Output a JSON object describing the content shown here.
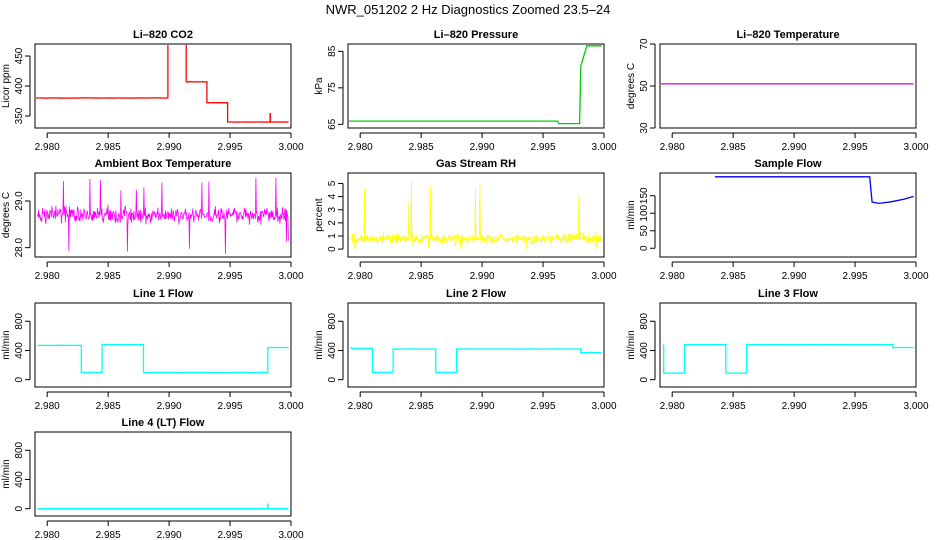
{
  "figure_title": "NWR_051202  2 Hz Diagnostics Zoomed 23.5–24",
  "chart_data": [
    {
      "type": "line",
      "title": "Li–820 CO2",
      "xlabel": "",
      "ylabel": "Licor ppm",
      "xlim": [
        2.979,
        3.0
      ],
      "ylim": [
        330,
        470
      ],
      "xticks": [
        2.98,
        2.985,
        2.99,
        2.995,
        3.0
      ],
      "xticklabels": [
        "2.980",
        "2.985",
        "2.990",
        "2.995",
        "3.000"
      ],
      "yticks": [
        350,
        400,
        450
      ],
      "yticklabels": [
        "350",
        "400",
        "450"
      ],
      "color": "#ff0000",
      "series": [
        {
          "kind": "step",
          "noise": 0.6,
          "x": [
            2.979,
            2.9899,
            2.9914,
            2.9931,
            2.9948,
            2.9998
          ],
          "y": [
            380,
            475,
            407,
            372,
            340,
            340
          ]
        }
      ],
      "spikes": [
        {
          "x": 2.9983,
          "y": 355
        }
      ]
    },
    {
      "type": "line",
      "title": "Li–820 Pressure",
      "xlabel": "",
      "ylabel": "kPa",
      "xlim": [
        2.979,
        3.0
      ],
      "ylim": [
        64,
        87
      ],
      "xticks": [
        2.98,
        2.985,
        2.99,
        2.995,
        3.0
      ],
      "xticklabels": [
        "2.980",
        "2.985",
        "2.990",
        "2.995",
        "3.000"
      ],
      "yticks": [
        65,
        75,
        85
      ],
      "yticklabels": [
        "65",
        "75",
        "85"
      ],
      "color": "#00cc00",
      "series": [
        {
          "kind": "path",
          "x": [
            2.979,
            2.9962,
            2.9963,
            2.998,
            2.9981,
            2.9986,
            2.9998
          ],
          "y": [
            65.9,
            65.9,
            65.2,
            65.2,
            81,
            86.5,
            86.5
          ]
        }
      ]
    },
    {
      "type": "line",
      "title": "Li–820 Temperature",
      "xlabel": "",
      "ylabel": "degrees C",
      "xlim": [
        2.979,
        3.0
      ],
      "ylim": [
        30,
        70
      ],
      "xticks": [
        2.98,
        2.985,
        2.99,
        2.995,
        3.0
      ],
      "xticklabels": [
        "2.980",
        "2.985",
        "2.990",
        "2.995",
        "3.000"
      ],
      "yticks": [
        30,
        50,
        70
      ],
      "yticklabels": [
        "30",
        "50",
        "70"
      ],
      "color": "#cc00cc",
      "series": [
        {
          "kind": "path",
          "x": [
            2.979,
            2.9998
          ],
          "y": [
            51,
            51
          ]
        }
      ]
    },
    {
      "type": "line",
      "title": "Ambient Box Temperature",
      "xlabel": "",
      "ylabel": "degrees C",
      "xlim": [
        2.979,
        3.0
      ],
      "ylim": [
        27.8,
        29.6
      ],
      "xticks": [
        2.98,
        2.985,
        2.99,
        2.995,
        3.0
      ],
      "xticklabels": [
        "2.980",
        "2.985",
        "2.990",
        "2.995",
        "3.000"
      ],
      "yticks": [
        28.0,
        29.0
      ],
      "yticklabels": [
        "28.0",
        "29.0"
      ],
      "color": "#ff00ff",
      "series": [
        {
          "kind": "noise",
          "x0": 2.9792,
          "x1": 2.9998,
          "base": 28.7,
          "spread": 0.18,
          "peakHi": 29.55,
          "peakLo": 27.85
        }
      ]
    },
    {
      "type": "line",
      "title": "Gas Stream RH",
      "xlabel": "",
      "ylabel": "percent",
      "xlim": [
        2.979,
        3.0
      ],
      "ylim": [
        -0.6,
        5.8
      ],
      "xticks": [
        2.98,
        2.985,
        2.99,
        2.995,
        3.0
      ],
      "xticklabels": [
        "2.980",
        "2.985",
        "2.990",
        "2.995",
        "3.000"
      ],
      "yticks": [
        0,
        1,
        2,
        3,
        4,
        5
      ],
      "yticklabels": [
        "0",
        "1",
        "2",
        "3",
        "4",
        "5"
      ],
      "color": "#ffff00",
      "series": [
        {
          "kind": "noise",
          "x0": 2.9792,
          "x1": 2.9998,
          "base": 0.8,
          "spread": 0.45,
          "peakHi": 5.3,
          "peakLo": -0.1
        }
      ]
    },
    {
      "type": "line",
      "title": "Sample Flow",
      "xlabel": "",
      "ylabel": "ml/min",
      "xlim": [
        2.979,
        3.0
      ],
      "ylim": [
        -25,
        215
      ],
      "xticks": [
        2.98,
        2.985,
        2.99,
        2.995,
        3.0
      ],
      "xticklabels": [
        "2.980",
        "2.985",
        "2.990",
        "2.995",
        "3.000"
      ],
      "yticks": [
        0,
        50,
        100,
        150
      ],
      "yticklabels": [
        "0",
        "50",
        "100",
        "150"
      ],
      "color": "#0000ff",
      "series": [
        {
          "kind": "path",
          "x": [
            2.9835,
            2.9962,
            2.9964,
            2.997,
            2.998,
            2.999,
            2.9998
          ],
          "y": [
            204,
            204,
            132,
            128,
            133,
            140,
            148
          ]
        }
      ]
    },
    {
      "type": "line",
      "title": "Line 1 Flow",
      "xlabel": "",
      "ylabel": "ml/min",
      "xlim": [
        2.979,
        3.0
      ],
      "ylim": [
        -100,
        1050
      ],
      "xticks": [
        2.98,
        2.985,
        2.99,
        2.995,
        3.0
      ],
      "xticklabels": [
        "2.980",
        "2.985",
        "2.990",
        "2.995",
        "3.000"
      ],
      "yticks": [
        0,
        400,
        800
      ],
      "yticklabels": [
        "0",
        "400",
        "800"
      ],
      "color": "#00ffff",
      "series": [
        {
          "kind": "step",
          "noise": 4,
          "x": [
            2.9792,
            2.9828,
            2.9845,
            2.9879,
            2.9981,
            2.9998
          ],
          "y": [
            470,
            100,
            480,
            100,
            440,
            440
          ]
        }
      ]
    },
    {
      "type": "line",
      "title": "Line 2 Flow",
      "xlabel": "",
      "ylabel": "ml/min",
      "xlim": [
        2.979,
        3.0
      ],
      "ylim": [
        -100,
        1050
      ],
      "xticks": [
        2.98,
        2.985,
        2.99,
        2.995,
        3.0
      ],
      "xticklabels": [
        "2.980",
        "2.985",
        "2.990",
        "2.995",
        "3.000"
      ],
      "yticks": [
        0,
        400,
        800
      ],
      "yticklabels": [
        "0",
        "400",
        "800"
      ],
      "color": "#00ffff",
      "series": [
        {
          "kind": "step",
          "noise": 4,
          "x": [
            2.9792,
            2.981,
            2.9827,
            2.9862,
            2.9879,
            2.9981,
            2.9998
          ],
          "y": [
            430,
            100,
            420,
            100,
            420,
            370,
            370
          ]
        }
      ]
    },
    {
      "type": "line",
      "title": "Line 3 Flow",
      "xlabel": "",
      "ylabel": "ml/min",
      "xlim": [
        2.979,
        3.0
      ],
      "ylim": [
        -100,
        1050
      ],
      "xticks": [
        2.98,
        2.985,
        2.99,
        2.995,
        3.0
      ],
      "xticklabels": [
        "2.980",
        "2.985",
        "2.990",
        "2.995",
        "3.000"
      ],
      "yticks": [
        0,
        400,
        800
      ],
      "yticklabels": [
        "0",
        "400",
        "800"
      ],
      "color": "#00ffff",
      "series": [
        {
          "kind": "step",
          "noise": 4,
          "x": [
            2.9792,
            2.9793,
            2.981,
            2.9844,
            2.9861,
            2.9981,
            2.9998
          ],
          "y": [
            470,
            90,
            480,
            90,
            480,
            440,
            440
          ]
        }
      ]
    },
    {
      "type": "line",
      "title": "Line 4 (LT) Flow",
      "xlabel": "",
      "ylabel": "ml/min",
      "xlim": [
        2.979,
        3.0
      ],
      "ylim": [
        -100,
        1050
      ],
      "xticks": [
        2.98,
        2.985,
        2.99,
        2.995,
        3.0
      ],
      "xticklabels": [
        "2.980",
        "2.985",
        "2.990",
        "2.995",
        "3.000"
      ],
      "yticks": [
        0,
        400,
        800
      ],
      "yticklabels": [
        "0",
        "400",
        "800"
      ],
      "color": "#00ffff",
      "series": [
        {
          "kind": "step",
          "noise": 1,
          "x": [
            2.9792,
            2.9998
          ],
          "y": [
            0,
            0
          ]
        }
      ],
      "spikes": [
        {
          "x": 2.9981,
          "y": 70
        }
      ]
    }
  ]
}
